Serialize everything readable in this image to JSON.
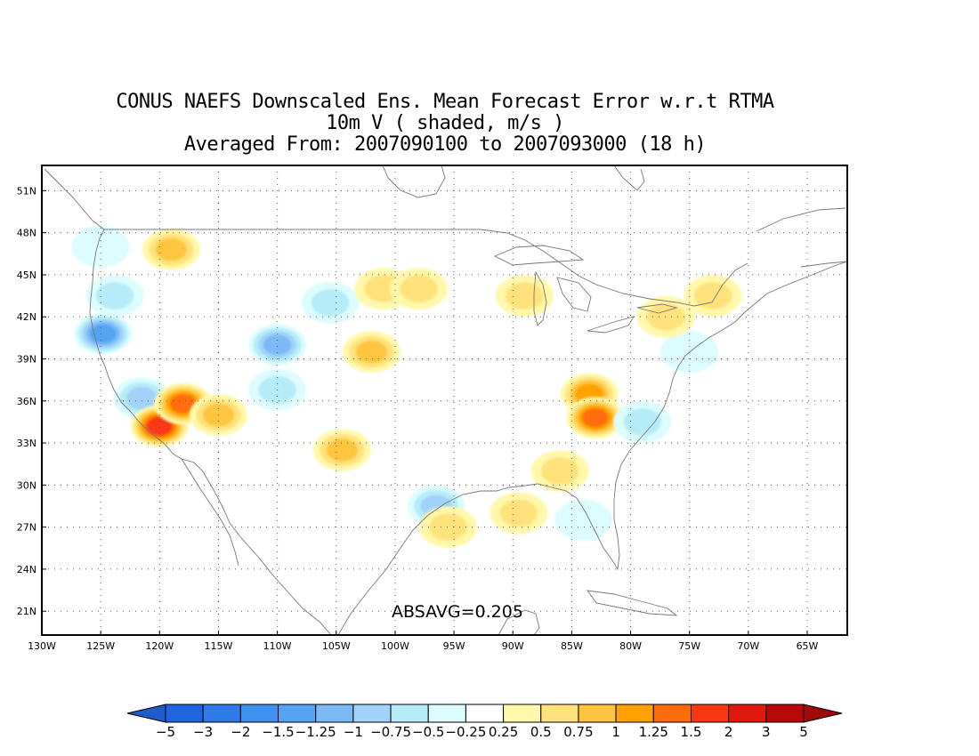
{
  "title": {
    "line1": "CONUS NAEFS Downscaled Ens. Mean Forecast Error w.r.t RTMA",
    "line2": "10m V ( shaded, m/s )",
    "line3": "Averaged From: 2007090100 to 2007093000 (18 h)"
  },
  "map": {
    "lat_labels": [
      "51N",
      "48N",
      "45N",
      "42N",
      "39N",
      "36N",
      "33N",
      "30N",
      "27N",
      "24N",
      "21N"
    ],
    "lon_labels": [
      "130W",
      "125W",
      "120W",
      "115W",
      "110W",
      "105W",
      "100W",
      "95W",
      "90W",
      "85W",
      "80W",
      "75W",
      "70W",
      "65W"
    ],
    "lat_range": [
      19.3,
      52.8
    ],
    "lon_range": [
      -130,
      -61.6
    ],
    "grid": true,
    "coast_color": "#777777"
  },
  "stat": {
    "text": "ABSAVG=0.205"
  },
  "colorbar": {
    "labels": [
      "−5",
      "−3",
      "−2",
      "−1.5",
      "−1.25",
      "−1",
      "−0.75",
      "−0.5",
      "−0.25",
      "0.25",
      "0.5",
      "0.75",
      "1",
      "1.25",
      "1.5",
      "2",
      "3",
      "5"
    ],
    "colors": [
      "#1f64e0",
      "#2f7ce8",
      "#3f91ef",
      "#55a3f1",
      "#7bb9f5",
      "#a2d2fa",
      "#b6ecf8",
      "#dcfcfe",
      "#ffffff",
      "#fff8ab",
      "#ffe27c",
      "#ffc43f",
      "#ffa100",
      "#ff6d0a",
      "#f83712",
      "#df180d",
      "#b9080a"
    ],
    "low_color": "#1e5ccc",
    "high_color": "#9e0a0a"
  },
  "chart_data": {
    "type": "heatmap",
    "variable": "10m V",
    "units": "m/s",
    "mean_abs": 0.205,
    "features": [
      {
        "lon": -124.8,
        "lat": 40.8,
        "v": -1.25
      },
      {
        "lon": -123.8,
        "lat": 43.5,
        "v": -0.5
      },
      {
        "lon": -125,
        "lat": 47,
        "v": -0.25
      },
      {
        "lon": -121.5,
        "lat": 36.2,
        "v": -0.75
      },
      {
        "lon": -120,
        "lat": 34.2,
        "v": 1.5
      },
      {
        "lon": -118,
        "lat": 35.8,
        "v": 1.25
      },
      {
        "lon": -115,
        "lat": 35,
        "v": 0.75
      },
      {
        "lon": -119,
        "lat": 46.8,
        "v": 0.75
      },
      {
        "lon": -110,
        "lat": 40,
        "v": -1.0
      },
      {
        "lon": -110,
        "lat": 36.8,
        "v": -0.5
      },
      {
        "lon": -105.5,
        "lat": 43,
        "v": -0.5
      },
      {
        "lon": -102,
        "lat": 39.5,
        "v": 0.75
      },
      {
        "lon": -101,
        "lat": 44,
        "v": 0.5
      },
      {
        "lon": -98,
        "lat": 44,
        "v": 0.5
      },
      {
        "lon": -104.5,
        "lat": 32.5,
        "v": 0.75
      },
      {
        "lon": -96.5,
        "lat": 28.5,
        "v": -0.75
      },
      {
        "lon": -95.5,
        "lat": 27,
        "v": 0.5
      },
      {
        "lon": -89,
        "lat": 43.5,
        "v": 0.5
      },
      {
        "lon": -83.5,
        "lat": 36.5,
        "v": 1.0
      },
      {
        "lon": -83,
        "lat": 34.8,
        "v": 1.25
      },
      {
        "lon": -79,
        "lat": 34.5,
        "v": -0.5
      },
      {
        "lon": -75,
        "lat": 39.5,
        "v": -0.25
      },
      {
        "lon": -73,
        "lat": 43.5,
        "v": 0.5
      },
      {
        "lon": -77,
        "lat": 42,
        "v": 0.5
      },
      {
        "lon": -86,
        "lat": 31,
        "v": 0.5
      },
      {
        "lon": -89.5,
        "lat": 28,
        "v": 0.5
      },
      {
        "lon": -84,
        "lat": 27.5,
        "v": -0.25
      }
    ]
  }
}
